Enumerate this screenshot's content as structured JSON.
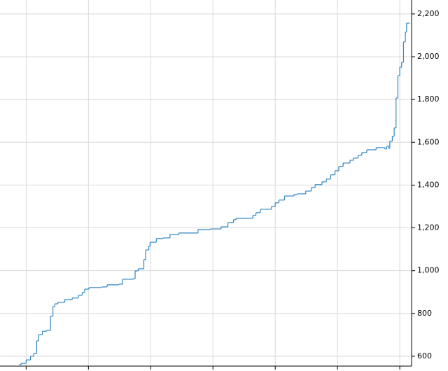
{
  "chart_data": {
    "type": "line",
    "drawstyle": "steps-post",
    "grid": true,
    "color": "#2f86c0",
    "x": [
      -0.11,
      -0.08,
      0,
      0.07,
      0.12,
      0.17,
      0.2,
      0.26,
      0.33,
      0.39,
      0.43,
      0.46,
      0.51,
      0.62,
      0.74,
      0.84,
      0.9,
      0.94,
      1.01,
      1.21,
      1.3,
      1.49,
      1.55,
      1.72,
      1.75,
      1.8,
      1.89,
      1.92,
      1.97,
      1.99,
      2.09,
      2.2,
      2.31,
      2.45,
      2.76,
      2.96,
      3.13,
      3.24,
      3.33,
      3.37,
      3.64,
      3.69,
      3.76,
      3.94,
      4.0,
      4.06,
      4.15,
      4.3,
      4.35,
      4.49,
      4.58,
      4.64,
      4.75,
      4.82,
      4.89,
      4.96,
      5.02,
      5.09,
      5.2,
      5.26,
      5.33,
      5.39,
      5.47,
      5.62,
      5.76,
      5.79,
      5.82,
      5.84,
      5.88,
      5.91,
      5.94,
      5.97,
      6.0,
      6.03,
      6.06,
      6.09,
      6.11,
      6.16
    ],
    "values": [
      561,
      567,
      583,
      600,
      613,
      672,
      701,
      717,
      721,
      787,
      832,
      845,
      852,
      865,
      872,
      885,
      898,
      914,
      921,
      924,
      934,
      937,
      960,
      963,
      999,
      1009,
      1052,
      1097,
      1114,
      1133,
      1150,
      1153,
      1169,
      1176,
      1192,
      1195,
      1205,
      1225,
      1238,
      1245,
      1258,
      1271,
      1287,
      1300,
      1317,
      1330,
      1349,
      1356,
      1359,
      1372,
      1389,
      1402,
      1415,
      1428,
      1448,
      1467,
      1487,
      1503,
      1516,
      1526,
      1539,
      1552,
      1565,
      1575,
      1569,
      1582,
      1572,
      1605,
      1628,
      1667,
      1807,
      1912,
      1951,
      1974,
      2069,
      2115,
      2157,
      2157
    ],
    "xlim": [
      -0.42,
      6.19
    ],
    "xticks": [
      0,
      1,
      2,
      3,
      4,
      5,
      6
    ],
    "ylim": [
      554,
      2265
    ],
    "yticks": [
      600,
      800,
      {
        "value": 1000,
        "label": "1,000"
      },
      {
        "value": 1200,
        "label": "1,200"
      },
      {
        "value": 1400,
        "label": "1,400"
      },
      {
        "value": 1600,
        "label": "1,600"
      },
      {
        "value": 1800,
        "label": "1,800"
      },
      {
        "value": 2000,
        "label": "2,000"
      },
      {
        "value": 2200,
        "label": "2,200"
      }
    ]
  }
}
